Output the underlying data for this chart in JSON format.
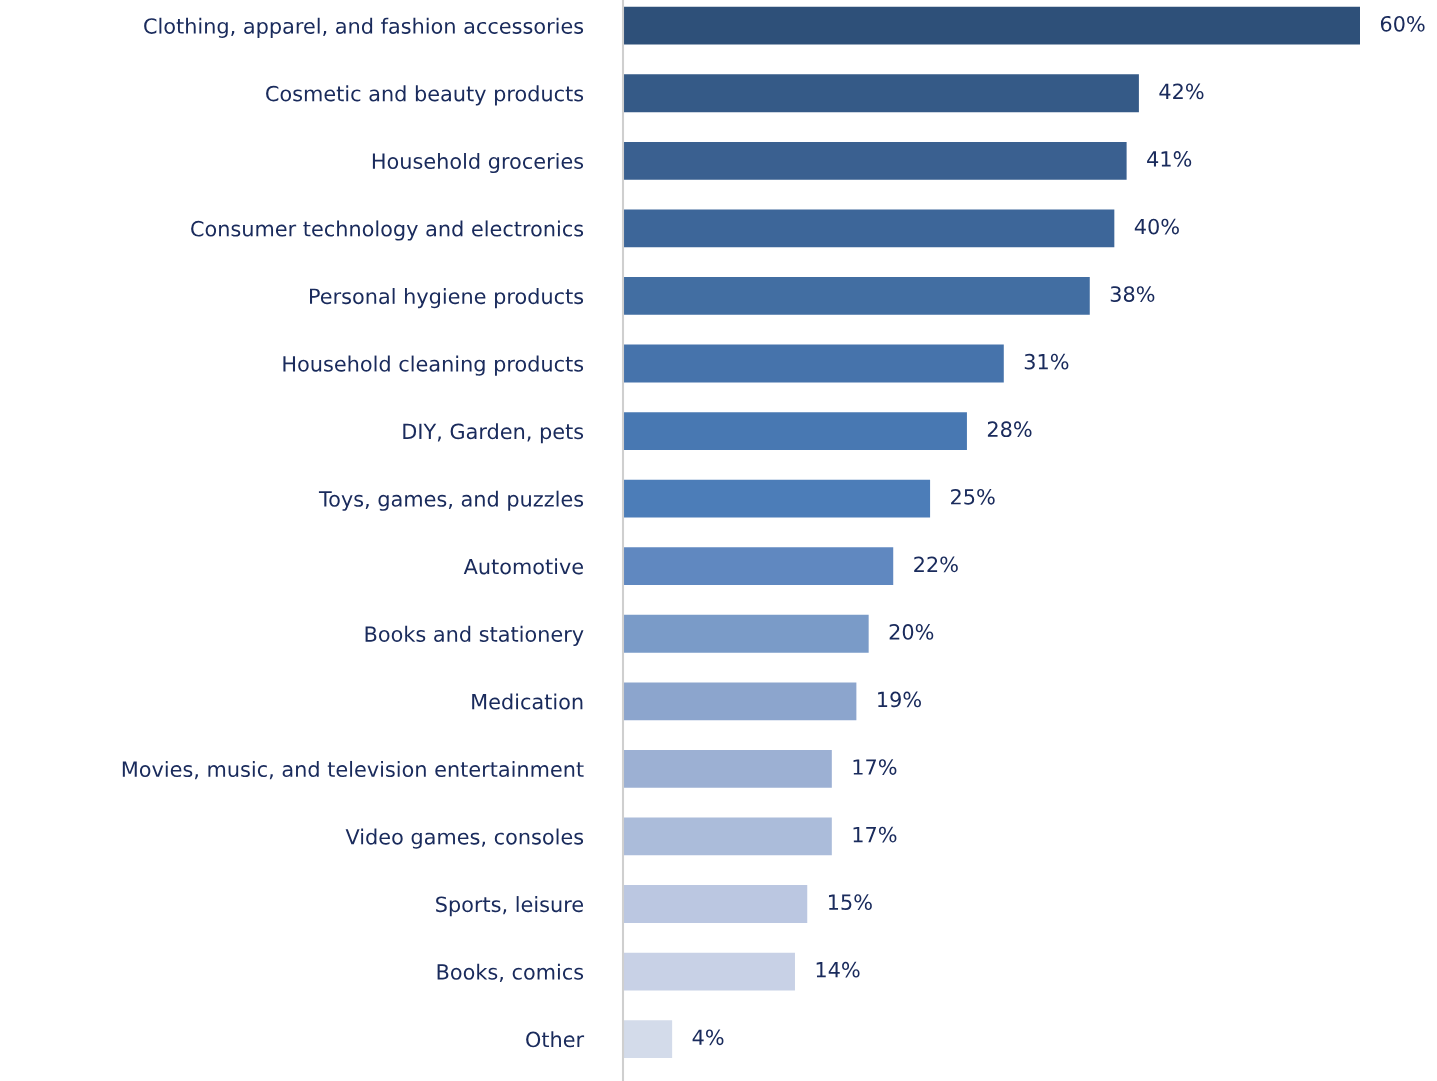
{
  "chart_data": {
    "type": "bar",
    "orientation": "horizontal",
    "categories": [
      "Clothing, apparel, and fashion accessories",
      "Cosmetic and beauty products",
      "Household groceries",
      "Consumer technology and electronics",
      "Personal hygiene products",
      "Household cleaning products",
      "DIY, Garden, pets",
      "Toys, games, and puzzles",
      "Automotive",
      "Books and stationery",
      "Medication",
      "Movies, music, and television entertainment",
      "Video games, consoles",
      "Sports, leisure",
      "Books, comics",
      "Other"
    ],
    "values": [
      60,
      42,
      41,
      40,
      38,
      31,
      28,
      25,
      22,
      20,
      19,
      17,
      17,
      15,
      14,
      4
    ],
    "value_labels": [
      "60%",
      "42%",
      "41%",
      "40%",
      "38%",
      "31%",
      "28%",
      "25%",
      "22%",
      "20%",
      "19%",
      "17%",
      "17%",
      "15%",
      "14%",
      "4%"
    ],
    "colors": [
      "#2e5079",
      "#355a87",
      "#3a6090",
      "#3d6699",
      "#426ea2",
      "#4673ab",
      "#4878b2",
      "#4c7db8",
      "#6088c0",
      "#7a9bc8",
      "#8ca5cd",
      "#9cb0d3",
      "#abbcda",
      "#bbc7e1",
      "#c8d1e6",
      "#d3dbea"
    ],
    "grid": false,
    "legend": false
  }
}
